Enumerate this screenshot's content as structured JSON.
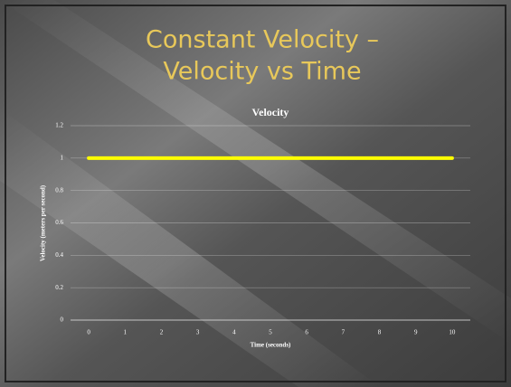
{
  "slide_title": [
    "Constant Velocity –",
    "Velocity vs Time"
  ],
  "chart_data": {
    "type": "line",
    "title": "Velocity",
    "x_label": "Time (seconds)",
    "y_label": "Velocity (meters per second)",
    "categories": [
      0,
      1,
      2,
      3,
      4,
      5,
      6,
      7,
      8,
      9,
      10
    ],
    "series": [
      {
        "name": "Velocity",
        "color": "#ffff00",
        "values": [
          1,
          1,
          1,
          1,
          1,
          1,
          1,
          1,
          1,
          1,
          1
        ]
      }
    ],
    "ylim": [
      0,
      1.2
    ],
    "yticks": [
      0,
      0.2,
      0.4,
      0.6,
      0.8,
      1,
      1.2
    ],
    "grid": true
  }
}
